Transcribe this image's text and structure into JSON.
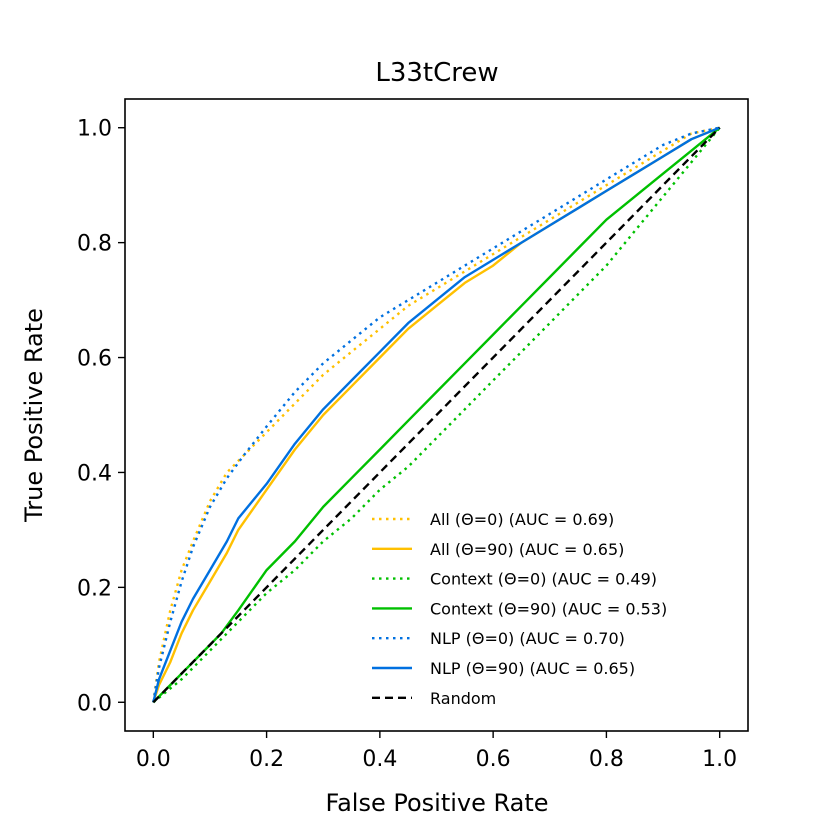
{
  "chart_data": {
    "type": "line",
    "title": "L33tCrew",
    "xlabel": "False Positive Rate",
    "ylabel": "True Positive Rate",
    "xlim": [
      -0.05,
      1.05
    ],
    "ylim": [
      -0.05,
      1.05
    ],
    "xticks": [
      0.0,
      0.2,
      0.4,
      0.6,
      0.8,
      1.0
    ],
    "yticks": [
      0.0,
      0.2,
      0.4,
      0.6,
      0.8,
      1.0
    ],
    "xtick_labels": [
      "0.0",
      "0.2",
      "0.4",
      "0.6",
      "0.8",
      "1.0"
    ],
    "ytick_labels": [
      "0.0",
      "0.2",
      "0.4",
      "0.6",
      "0.8",
      "1.0"
    ],
    "legend_position": "lower-right",
    "series": [
      {
        "name": "All (Θ=0) (AUC = 0.69)",
        "color": "#ffc000",
        "style": "dotted",
        "x": [
          0,
          0.01,
          0.03,
          0.05,
          0.07,
          0.1,
          0.13,
          0.16,
          0.2,
          0.25,
          0.3,
          0.35,
          0.4,
          0.45,
          0.5,
          0.55,
          0.6,
          0.65,
          0.7,
          0.75,
          0.8,
          0.85,
          0.9,
          0.95,
          1.0
        ],
        "y": [
          0,
          0.07,
          0.16,
          0.23,
          0.28,
          0.35,
          0.4,
          0.43,
          0.47,
          0.52,
          0.57,
          0.61,
          0.65,
          0.69,
          0.72,
          0.75,
          0.78,
          0.81,
          0.84,
          0.87,
          0.9,
          0.93,
          0.96,
          0.99,
          1.0
        ]
      },
      {
        "name": "All (Θ=90) (AUC = 0.65)",
        "color": "#ffc000",
        "style": "solid",
        "x": [
          0,
          0.01,
          0.03,
          0.05,
          0.07,
          0.1,
          0.13,
          0.15,
          0.2,
          0.25,
          0.3,
          0.35,
          0.4,
          0.45,
          0.5,
          0.55,
          0.6,
          0.65,
          0.7,
          0.75,
          0.8,
          0.85,
          0.9,
          0.95,
          1.0
        ],
        "y": [
          0,
          0.03,
          0.07,
          0.12,
          0.16,
          0.21,
          0.26,
          0.3,
          0.37,
          0.44,
          0.5,
          0.55,
          0.6,
          0.65,
          0.69,
          0.73,
          0.76,
          0.8,
          0.83,
          0.86,
          0.89,
          0.92,
          0.95,
          0.98,
          1.0
        ]
      },
      {
        "name": "Context (Θ=0) (AUC = 0.49)",
        "color": "#00c000",
        "style": "dotted",
        "x": [
          0,
          0.05,
          0.1,
          0.15,
          0.2,
          0.25,
          0.3,
          0.35,
          0.4,
          0.45,
          0.5,
          0.55,
          0.6,
          0.65,
          0.7,
          0.75,
          0.8,
          0.85,
          0.9,
          0.95,
          1.0
        ],
        "y": [
          0,
          0.04,
          0.09,
          0.14,
          0.19,
          0.23,
          0.28,
          0.32,
          0.37,
          0.41,
          0.46,
          0.51,
          0.56,
          0.61,
          0.66,
          0.71,
          0.76,
          0.82,
          0.88,
          0.94,
          1.0
        ]
      },
      {
        "name": "Context (Θ=90) (AUC = 0.53)",
        "color": "#00c000",
        "style": "solid",
        "x": [
          0,
          0.03,
          0.06,
          0.09,
          0.12,
          0.15,
          0.2,
          0.25,
          0.3,
          0.35,
          0.4,
          0.45,
          0.5,
          0.55,
          0.6,
          0.65,
          0.7,
          0.75,
          0.8,
          0.85,
          0.9,
          0.95,
          1.0
        ],
        "y": [
          0,
          0.03,
          0.06,
          0.09,
          0.12,
          0.16,
          0.23,
          0.28,
          0.34,
          0.39,
          0.44,
          0.49,
          0.54,
          0.59,
          0.64,
          0.69,
          0.74,
          0.79,
          0.84,
          0.88,
          0.92,
          0.96,
          1.0
        ]
      },
      {
        "name": "NLP (Θ=0) (AUC = 0.70)",
        "color": "#0070e0",
        "style": "dotted",
        "x": [
          0,
          0.01,
          0.03,
          0.05,
          0.07,
          0.1,
          0.13,
          0.16,
          0.2,
          0.25,
          0.3,
          0.35,
          0.4,
          0.45,
          0.5,
          0.55,
          0.6,
          0.65,
          0.7,
          0.75,
          0.8,
          0.85,
          0.9,
          0.95,
          1.0
        ],
        "y": [
          0,
          0.06,
          0.14,
          0.21,
          0.27,
          0.34,
          0.39,
          0.43,
          0.48,
          0.54,
          0.59,
          0.63,
          0.67,
          0.7,
          0.73,
          0.76,
          0.79,
          0.82,
          0.85,
          0.88,
          0.91,
          0.94,
          0.97,
          0.99,
          1.0
        ]
      },
      {
        "name": "NLP (Θ=90) (AUC = 0.65)",
        "color": "#0070e0",
        "style": "solid",
        "x": [
          0,
          0.01,
          0.03,
          0.05,
          0.07,
          0.1,
          0.13,
          0.15,
          0.2,
          0.25,
          0.3,
          0.35,
          0.4,
          0.45,
          0.5,
          0.55,
          0.6,
          0.65,
          0.7,
          0.75,
          0.8,
          0.85,
          0.9,
          0.95,
          1.0
        ],
        "y": [
          0,
          0.04,
          0.09,
          0.14,
          0.18,
          0.23,
          0.28,
          0.32,
          0.38,
          0.45,
          0.51,
          0.56,
          0.61,
          0.66,
          0.7,
          0.74,
          0.77,
          0.8,
          0.83,
          0.86,
          0.89,
          0.92,
          0.95,
          0.98,
          1.0
        ]
      },
      {
        "name": "Random",
        "color": "#000000",
        "style": "dashed",
        "x": [
          0,
          1
        ],
        "y": [
          0,
          1
        ]
      }
    ]
  }
}
